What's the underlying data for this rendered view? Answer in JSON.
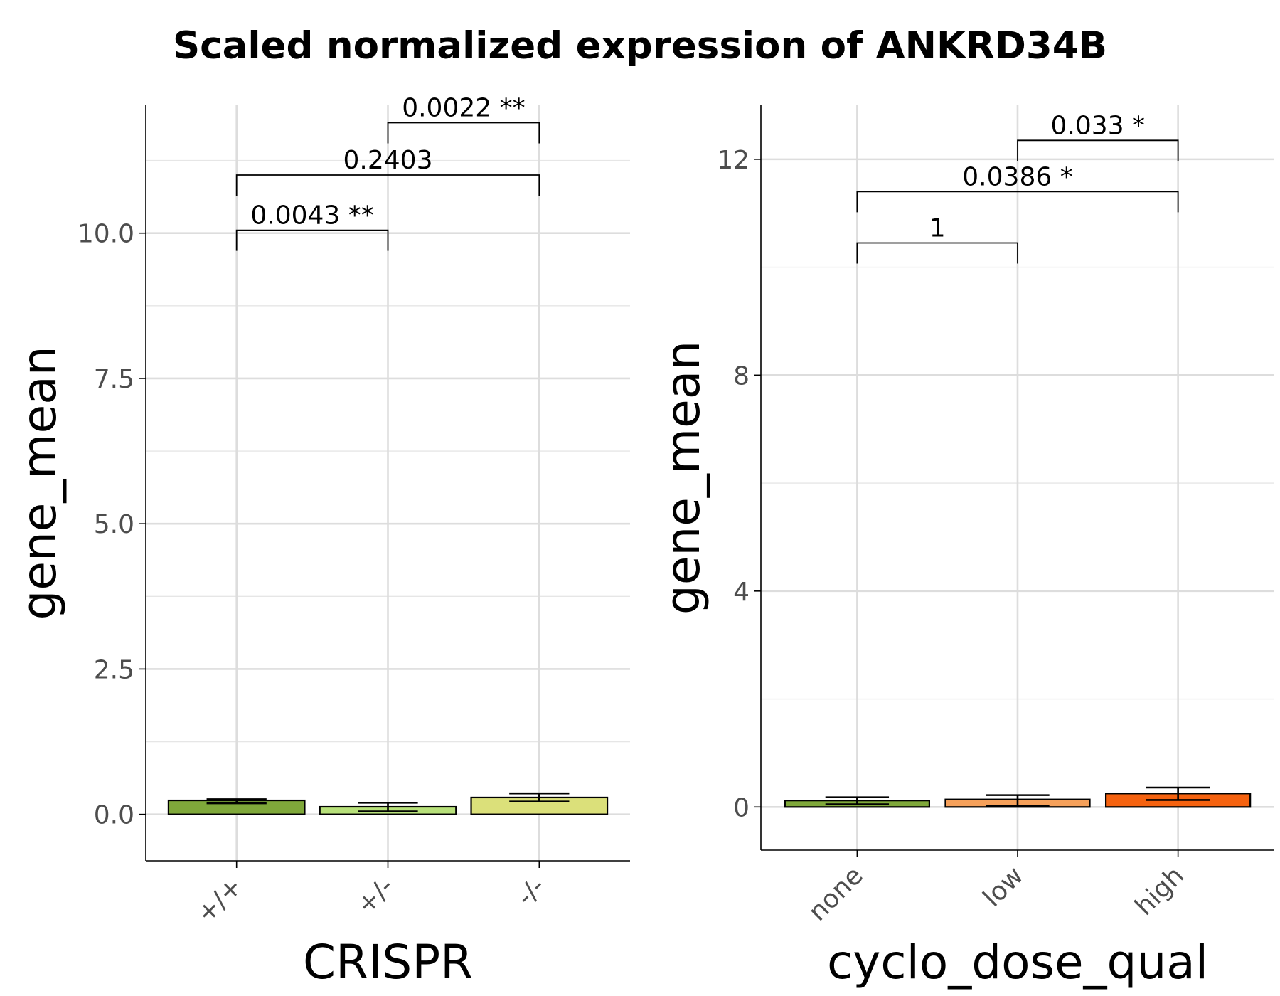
{
  "title": "Scaled normalized expression of ANKRD34B",
  "chart_data": [
    {
      "type": "bar",
      "xlabel": "CRISPR",
      "ylabel": "gene_mean",
      "categories": [
        "+/+",
        "+/-",
        "-/-"
      ],
      "values": [
        0.24,
        0.13,
        0.29
      ],
      "error_bars": [
        [
          0.19,
          0.26
        ],
        [
          0.05,
          0.2
        ],
        [
          0.22,
          0.36
        ]
      ],
      "colors": [
        "#7fa83a",
        "#b7e07a",
        "#dbe07a"
      ],
      "ylim": [
        -0.8,
        12.2
      ],
      "yticks": [
        0.0,
        2.5,
        5.0,
        7.5,
        10.0
      ],
      "ytick_labels": [
        "0.0",
        "2.5",
        "5.0",
        "7.5",
        "10.0"
      ],
      "grid": true,
      "annotations": [
        {
          "from": 0,
          "to": 1,
          "y": 10.05,
          "label": "0.0043 **"
        },
        {
          "from": 0,
          "to": 2,
          "y": 11.0,
          "label": "0.2403"
        },
        {
          "from": 1,
          "to": 2,
          "y": 11.9,
          "label": "0.0022 **"
        }
      ]
    },
    {
      "type": "bar",
      "xlabel": "cyclo_dose_qual",
      "ylabel": "gene_mean",
      "categories": [
        "none",
        "low",
        "high"
      ],
      "values": [
        0.12,
        0.14,
        0.25
      ],
      "error_bars": [
        [
          0.05,
          0.18
        ],
        [
          0.02,
          0.22
        ],
        [
          0.13,
          0.36
        ]
      ],
      "colors": [
        "#7fa83a",
        "#f5a05a",
        "#f5620f"
      ],
      "ylim": [
        -0.8,
        13.0
      ],
      "yticks": [
        0,
        4,
        8,
        12
      ],
      "ytick_labels": [
        "0",
        "4",
        "8",
        "12"
      ],
      "grid": true,
      "annotations": [
        {
          "from": 0,
          "to": 1,
          "y": 10.45,
          "label": "1"
        },
        {
          "from": 0,
          "to": 2,
          "y": 11.4,
          "label": "0.0386 *"
        },
        {
          "from": 1,
          "to": 2,
          "y": 12.35,
          "label": "0.033 *"
        }
      ]
    }
  ]
}
